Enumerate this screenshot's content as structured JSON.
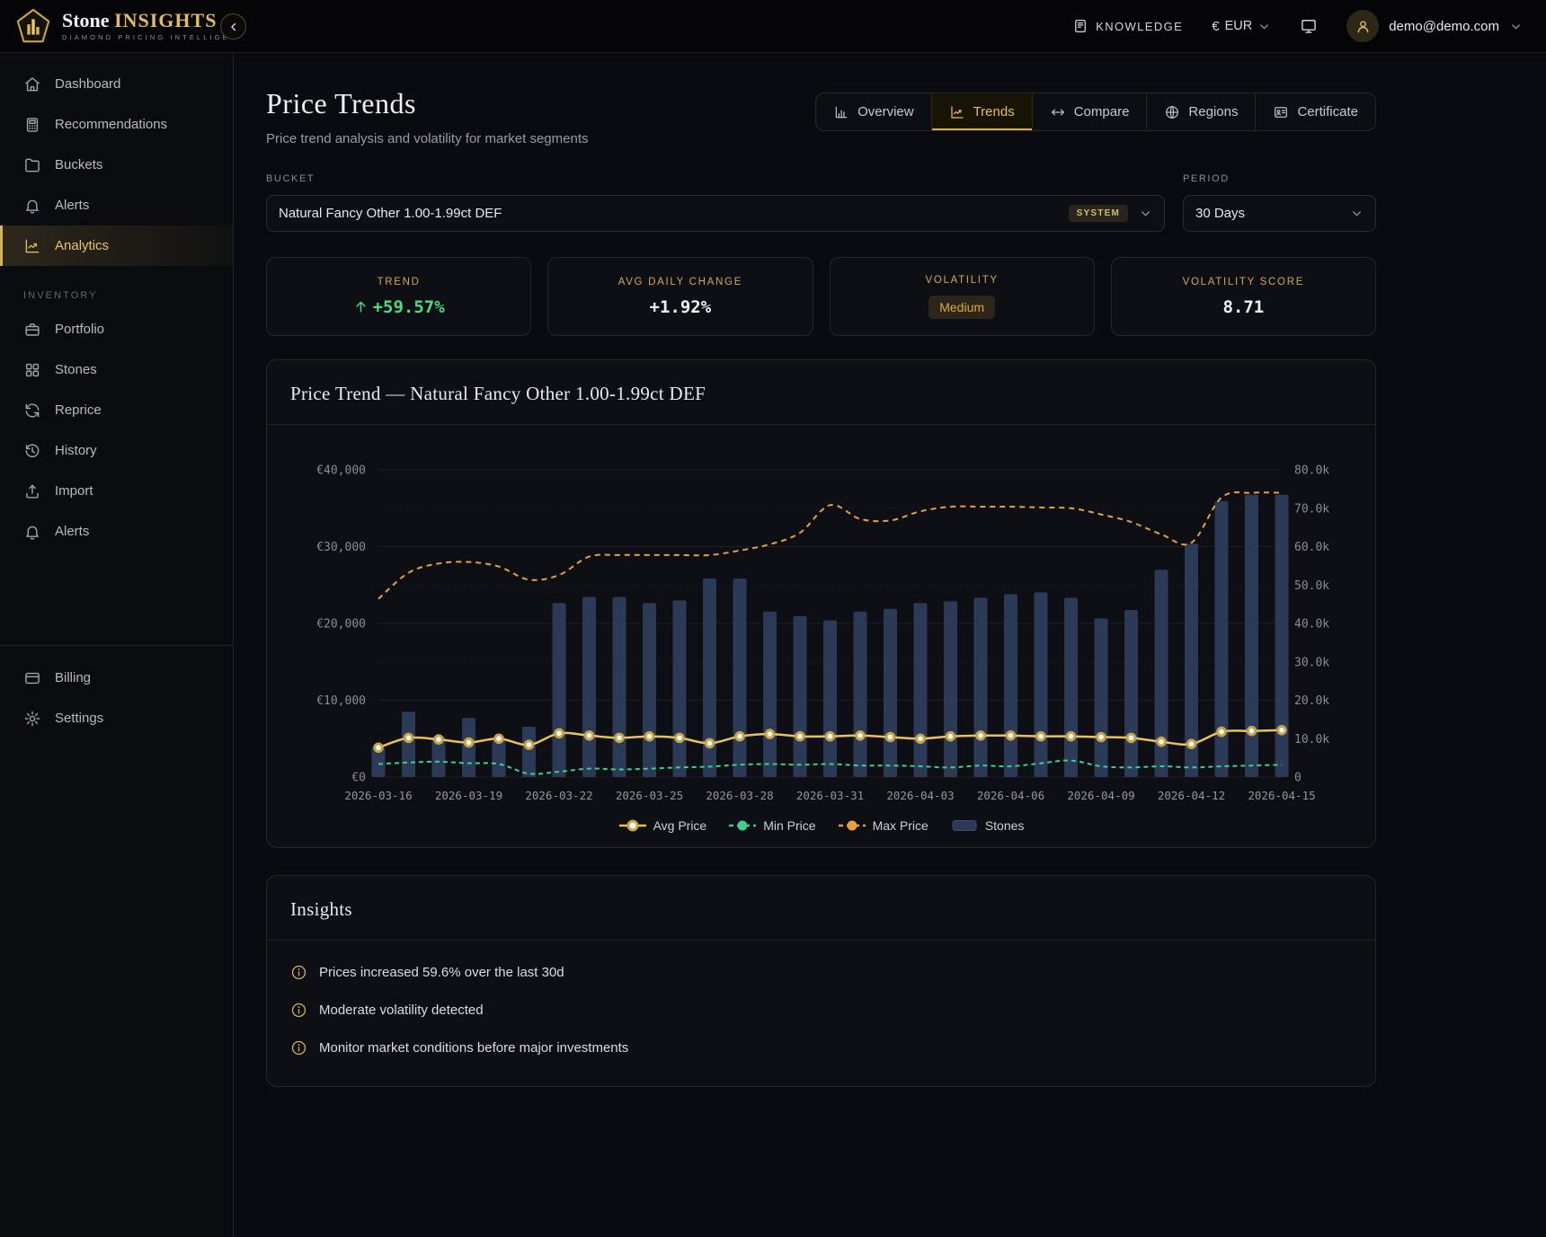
{
  "brand": {
    "name_primary": "Stone",
    "name_accent": "INSIGHTS",
    "tagline": "DIAMOND PRICING INTELLIGE",
    "logo_icon": "pentagon-bars-icon"
  },
  "header": {
    "knowledge_label": "KNOWLEDGE",
    "currency": {
      "symbol": "€",
      "code": "EUR"
    },
    "user": {
      "email": "demo@demo.com"
    }
  },
  "sidebar": {
    "main_items": [
      {
        "label": "Dashboard",
        "icon": "home-icon",
        "active": false
      },
      {
        "label": "Recommendations",
        "icon": "calculator-icon",
        "active": false
      },
      {
        "label": "Buckets",
        "icon": "folder-icon",
        "active": false
      },
      {
        "label": "Alerts",
        "icon": "bell-icon",
        "active": false
      },
      {
        "label": "Analytics",
        "icon": "analytics-icon",
        "active": true
      }
    ],
    "inventory_label": "INVENTORY",
    "inventory_items": [
      {
        "label": "Portfolio",
        "icon": "briefcase-icon"
      },
      {
        "label": "Stones",
        "icon": "grid-icon"
      },
      {
        "label": "Reprice",
        "icon": "refresh-icon"
      },
      {
        "label": "History",
        "icon": "history-icon"
      },
      {
        "label": "Import",
        "icon": "upload-icon"
      },
      {
        "label": "Alerts",
        "icon": "bell-icon"
      }
    ],
    "footer_items": [
      {
        "label": "Billing",
        "icon": "card-icon"
      },
      {
        "label": "Settings",
        "icon": "gear-icon"
      }
    ]
  },
  "page": {
    "title": "Price Trends",
    "subtitle": "Price trend analysis and volatility for market segments"
  },
  "tabs": [
    {
      "label": "Overview",
      "icon": "bar-chart-icon",
      "active": false
    },
    {
      "label": "Trends",
      "icon": "trend-icon",
      "active": true
    },
    {
      "label": "Compare",
      "icon": "compare-icon",
      "active": false
    },
    {
      "label": "Regions",
      "icon": "globe-icon",
      "active": false
    },
    {
      "label": "Certificate",
      "icon": "certificate-icon",
      "active": false
    }
  ],
  "filters": {
    "bucket_label": "BUCKET",
    "bucket_value": "Natural Fancy Other 1.00-1.99ct DEF",
    "bucket_badge": "SYSTEM",
    "period_label": "PERIOD",
    "period_value": "30 Days"
  },
  "stats": [
    {
      "label": "TREND",
      "value": "+59.57%",
      "display": "trend",
      "icon": "arrow-up-icon",
      "color": "#4ade80"
    },
    {
      "label": "AVG DAILY CHANGE",
      "value": "+1.92%",
      "display": "text"
    },
    {
      "label": "VOLATILITY",
      "value": "Medium",
      "display": "badge"
    },
    {
      "label": "VOLATILITY SCORE",
      "value": "8.71",
      "display": "text"
    }
  ],
  "chart_card": {
    "title": "Price Trend — Natural Fancy Other 1.00-1.99ct DEF"
  },
  "chart_data": {
    "type": "line",
    "title": "Price Trend — Natural Fancy Other 1.00-1.99ct DEF",
    "x": [
      "2026-03-16",
      "2026-03-17",
      "2026-03-18",
      "2026-03-19",
      "2026-03-20",
      "2026-03-21",
      "2026-03-22",
      "2026-03-23",
      "2026-03-24",
      "2026-03-25",
      "2026-03-26",
      "2026-03-27",
      "2026-03-28",
      "2026-03-29",
      "2026-03-30",
      "2026-03-31",
      "2026-04-01",
      "2026-04-02",
      "2026-04-03",
      "2026-04-04",
      "2026-04-05",
      "2026-04-06",
      "2026-04-07",
      "2026-04-08",
      "2026-04-09",
      "2026-04-10",
      "2026-04-11",
      "2026-04-12",
      "2026-04-13",
      "2026-04-14",
      "2026-04-15"
    ],
    "x_tick_labels": [
      "2026-03-16",
      "2026-03-19",
      "2026-03-22",
      "2026-03-25",
      "2026-03-28",
      "2026-03-31",
      "2026-04-03",
      "2026-04-06",
      "2026-04-09",
      "2026-04-12",
      "2026-04-15"
    ],
    "series": [
      {
        "name": "Avg Price",
        "type": "line",
        "style": "solid",
        "marker": "white-dot",
        "axis": "left",
        "color": "#e9c25e",
        "values": [
          3820,
          5100,
          4900,
          4500,
          5000,
          4200,
          5700,
          5400,
          5100,
          5300,
          5100,
          4400,
          5300,
          5600,
          5300,
          5300,
          5400,
          5200,
          5000,
          5300,
          5400,
          5400,
          5300,
          5300,
          5200,
          5100,
          4600,
          4300,
          5900,
          6000,
          6100
        ]
      },
      {
        "name": "Min Price",
        "type": "line",
        "style": "dashed",
        "axis": "left",
        "color": "#3ecf8e",
        "values": [
          1700,
          1900,
          2000,
          1800,
          1700,
          450,
          700,
          1100,
          1000,
          1100,
          1250,
          1360,
          1600,
          1700,
          1600,
          1700,
          1500,
          1500,
          1400,
          1250,
          1500,
          1400,
          1800,
          2150,
          1400,
          1250,
          1400,
          1250,
          1400,
          1500,
          1600
        ]
      },
      {
        "name": "Max Price",
        "type": "line",
        "style": "dashed",
        "axis": "left",
        "color": "#e6a23c",
        "values": [
          23200,
          26600,
          27800,
          28000,
          27400,
          25700,
          26300,
          28700,
          28900,
          28900,
          28900,
          28900,
          29500,
          30300,
          31800,
          35400,
          33600,
          33400,
          34600,
          35200,
          35200,
          35200,
          35100,
          35000,
          34200,
          33200,
          31600,
          30500,
          36400,
          37000,
          37000
        ]
      },
      {
        "name": "Stones",
        "type": "bar",
        "axis": "right",
        "color": "#2b3a57",
        "values": [
          7700,
          17000,
          10600,
          15400,
          9500,
          13100,
          45300,
          46900,
          46900,
          45300,
          46000,
          51700,
          51700,
          43100,
          41900,
          40800,
          43100,
          43800,
          45300,
          45800,
          46700,
          47600,
          48100,
          46700,
          41300,
          43500,
          54000,
          60800,
          71900,
          73500,
          73500
        ]
      }
    ],
    "left_axis": {
      "min": 0,
      "max": 40000,
      "tick_labels": [
        "€0",
        "€10,000",
        "€20,000",
        "€30,000",
        "€40,000"
      ]
    },
    "right_axis": {
      "min": 0,
      "max": 80000,
      "tick_labels": [
        "0",
        "10.0k",
        "20.0k",
        "30.0k",
        "40.0k",
        "50.0k",
        "60.0k",
        "70.0k",
        "80.0k"
      ]
    },
    "grid": true,
    "legend_position": "bottom"
  },
  "insights": {
    "title": "Insights",
    "items": [
      "Prices increased 59.6% over the last 30d",
      "Moderate volatility detected",
      "Monitor market conditions before major investments"
    ]
  },
  "colors": {
    "accent_gold": "#d9b35c",
    "positive_green": "#4ade80",
    "badge_amber": "#e0a93a",
    "bar_blue": "#2b3a57",
    "avg_line": "#e9c25e",
    "min_line": "#3ecf8e",
    "max_line": "#e6a23c",
    "card_bg": "#0d0f15",
    "page_bg": "#0a0b10"
  }
}
